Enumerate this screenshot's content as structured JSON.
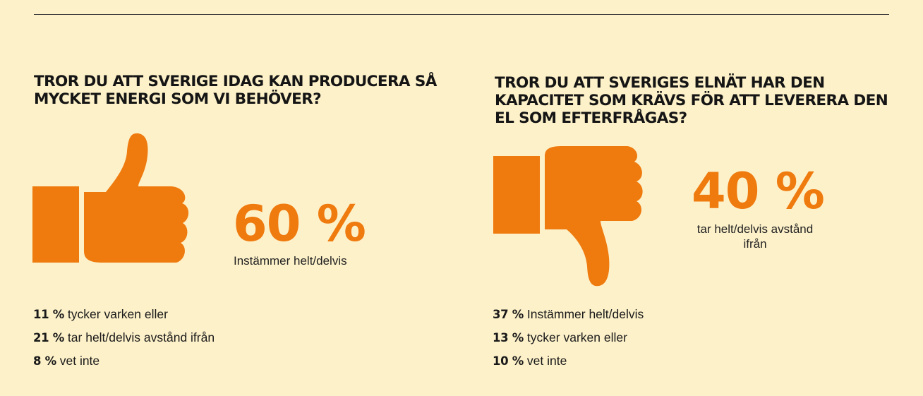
{
  "colors": {
    "background": "#fdf1c9",
    "accent": "#ef7a0e",
    "text": "#1a1a1a"
  },
  "chart_data": [
    {
      "type": "table",
      "title": "TROR DU ATT SVERIGE IDAG KAN PRODUCERA SÅ MYCKET ENERGI SOM VI BEHÖVER?",
      "icon": "thumbs-up-icon",
      "headline": {
        "value": 60,
        "text": "60 %",
        "label": "Instämmer helt/delvis"
      },
      "rows": [
        {
          "value": 11,
          "pct": "11 %",
          "label": "tycker varken eller"
        },
        {
          "value": 21,
          "pct": "21 %",
          "label": "tar helt/delvis avstånd ifrån"
        },
        {
          "value": 8,
          "pct": "8 %",
          "label": "vet inte"
        }
      ]
    },
    {
      "type": "table",
      "title": "TROR DU ATT SVERIGES ELNÄT HAR DEN KAPACITET SOM KRÄVS FÖR ATT LEVERERA DEN EL SOM EFTERFRÅGAS?",
      "icon": "thumbs-down-icon",
      "headline": {
        "value": 40,
        "text": "40 %",
        "label": "tar helt/delvis avstånd ifrån"
      },
      "rows": [
        {
          "value": 37,
          "pct": "37 %",
          "label": "Instämmer helt/delvis"
        },
        {
          "value": 13,
          "pct": "13 %",
          "label": "tycker varken eller"
        },
        {
          "value": 10,
          "pct": "10 %",
          "label": "vet inte"
        }
      ]
    }
  ]
}
